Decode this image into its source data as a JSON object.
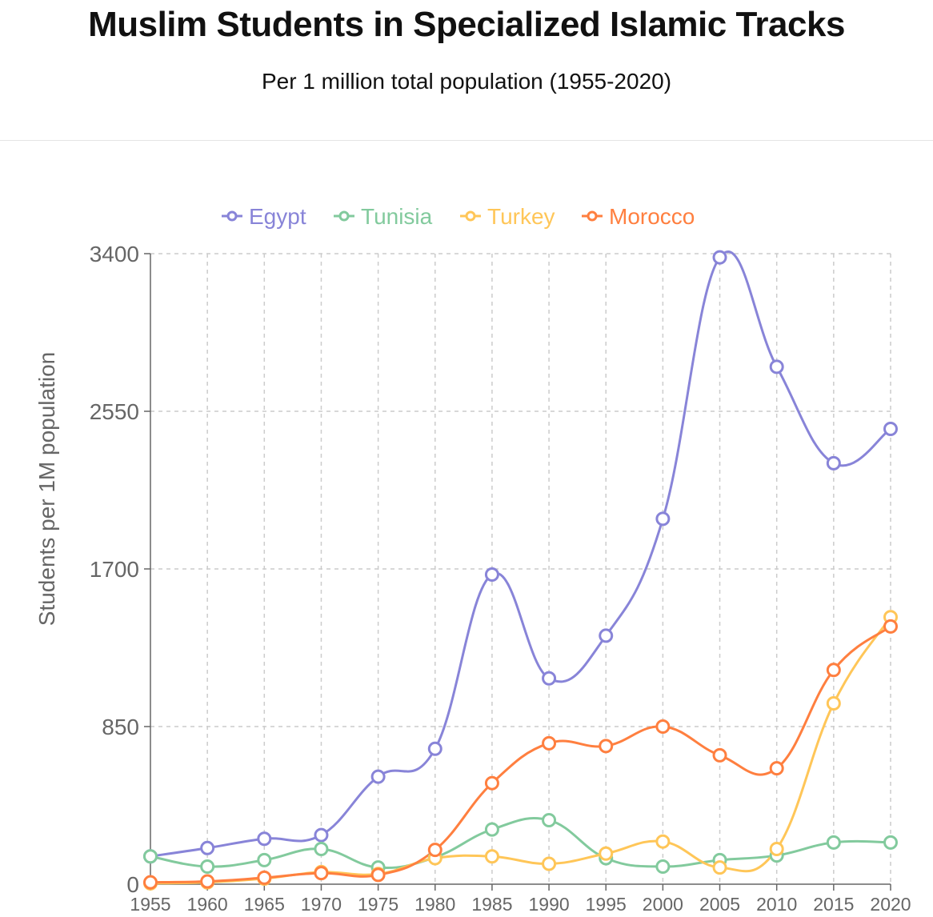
{
  "header": {
    "title": "Muslim Students in Specialized Islamic Tracks",
    "subtitle": "Per 1 million total population (1955-2020)"
  },
  "chart_data": {
    "type": "line",
    "title": "Muslim Students in Specialized Islamic Tracks",
    "subtitle": "Per 1 million total population (1955-2020)",
    "xlabel": "",
    "ylabel": "Students per 1M population",
    "x": [
      "1955",
      "1960",
      "1965",
      "1970",
      "1975",
      "1980",
      "1985",
      "1990",
      "1995",
      "2000",
      "2005",
      "2010",
      "2015",
      "2020"
    ],
    "ylim": [
      0,
      3400
    ],
    "yticks": [
      "0",
      "850",
      "1700",
      "2550",
      "3400"
    ],
    "grid": true,
    "legend_position": "top",
    "series": [
      {
        "name": "Egypt",
        "color": "#8884d8",
        "values": [
          150,
          195,
          245,
          265,
          580,
          730,
          1670,
          1110,
          1340,
          1970,
          3380,
          2790,
          2270,
          2455
        ]
      },
      {
        "name": "Tunisia",
        "color": "#82ca9d",
        "values": [
          150,
          95,
          130,
          190,
          90,
          145,
          295,
          345,
          140,
          95,
          130,
          155,
          225,
          225
        ]
      },
      {
        "name": "Turkey",
        "color": "#ffc658",
        "values": [
          5,
          10,
          30,
          65,
          55,
          140,
          150,
          110,
          165,
          230,
          90,
          190,
          975,
          1440
        ]
      },
      {
        "name": "Morocco",
        "color": "#ff7f3f",
        "values": [
          10,
          15,
          35,
          60,
          50,
          185,
          545,
          760,
          745,
          850,
          695,
          625,
          1155,
          1390
        ]
      }
    ]
  }
}
